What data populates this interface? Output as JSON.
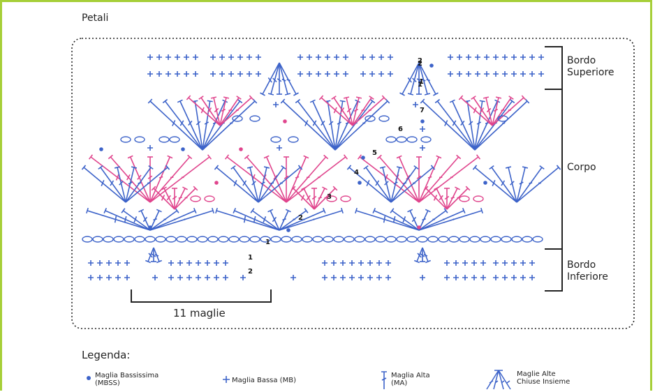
{
  "title": "Petali",
  "sections": {
    "top": "Bordo\nSuperiore",
    "body": "Corpo",
    "bottom": "Bordo\nInferiore"
  },
  "span_label": "11 maglie",
  "step_numbers": [
    "1",
    "1",
    "2",
    "2",
    "1",
    "2",
    "3",
    "4",
    "5",
    "6",
    "7",
    "1",
    "2"
  ],
  "legend": {
    "title": "Legenda:",
    "items": [
      {
        "symbol": "dot-icon",
        "label": "Maglia Bassissima\n(MBSS)"
      },
      {
        "symbol": "plus-icon",
        "label": "Maglia Bassa (MB)"
      },
      {
        "symbol": "tall-stitch-icon",
        "label": "Maglia Alta\n(MA)"
      },
      {
        "symbol": "cluster-icon",
        "label": "Maglie Alte\nChiuse Insieme"
      }
    ]
  },
  "colors": {
    "frame": "#a6cf38",
    "blue": "#3d63c9",
    "pink": "#e0458d",
    "ink": "#222222"
  }
}
